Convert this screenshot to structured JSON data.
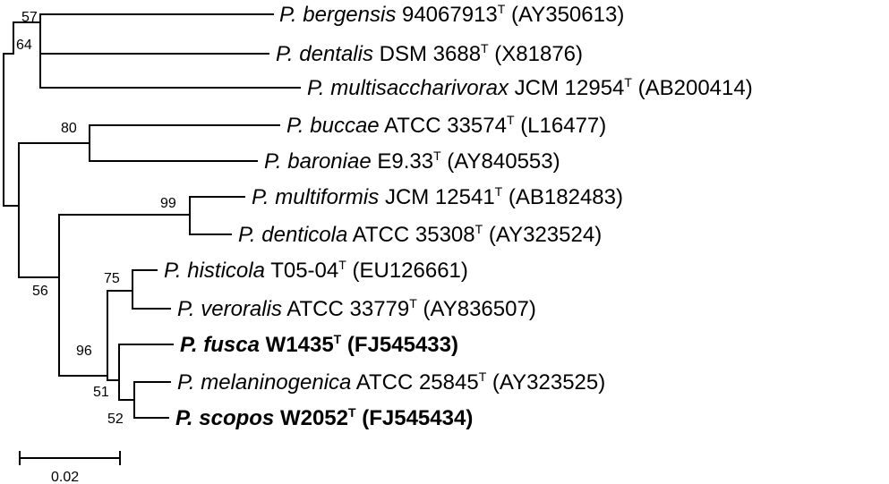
{
  "taxa": [
    {
      "species": "P. bergensis",
      "strain": "94067913",
      "sup": "T",
      "accession": "(AY350613)",
      "bold": false
    },
    {
      "species": "P. dentalis",
      "strain": "DSM 3688",
      "sup": "T",
      "accession": "(X81876)",
      "bold": false
    },
    {
      "species": "P. multisaccharivorax",
      "strain": "JCM 12954",
      "sup": "T",
      "accession": "(AB200414)",
      "bold": false
    },
    {
      "species": "P. buccae",
      "strain": "ATCC 33574",
      "sup": "T",
      "accession": "(L16477)",
      "bold": false
    },
    {
      "species": "P. baroniae",
      "strain": "E9.33",
      "sup": "T",
      "accession": "(AY840553)",
      "bold": false
    },
    {
      "species": "P. multiformis",
      "strain": "JCM 12541",
      "sup": "T",
      "accession": "(AB182483)",
      "bold": false
    },
    {
      "species": "P. denticola",
      "strain": "ATCC 35308",
      "sup": "T",
      "accession": "(AY323524)",
      "bold": false
    },
    {
      "species": "P. histicola",
      "strain": "T05-04",
      "sup": "T",
      "accession": "(EU126661)",
      "bold": false
    },
    {
      "species": "P. veroralis",
      "strain": "ATCC 33779",
      "sup": "T",
      "accession": "(AY836507)",
      "bold": false
    },
    {
      "species": "P. fusca",
      "strain": "W1435",
      "sup": "T",
      "accession": "(FJ545433)",
      "bold": true
    },
    {
      "species": "P. melaninogenica",
      "strain": "ATCC 25845",
      "sup": "T",
      "accession": "(AY323525)",
      "bold": false
    },
    {
      "species": "P. scopos",
      "strain": "W2052",
      "sup": "T",
      "accession": "(FJ545434)",
      "bold": true
    }
  ],
  "bootstrap": {
    "berg_dent": "57",
    "dent_group": "64",
    "buccae_baroniae": "80",
    "multiformis_denticola": "99",
    "main_clade": "56",
    "histicola_veroralis": "75",
    "clade_96": "96",
    "clade_51": "51",
    "clade_52": "52"
  },
  "scale_bar": {
    "label": "0.02"
  }
}
